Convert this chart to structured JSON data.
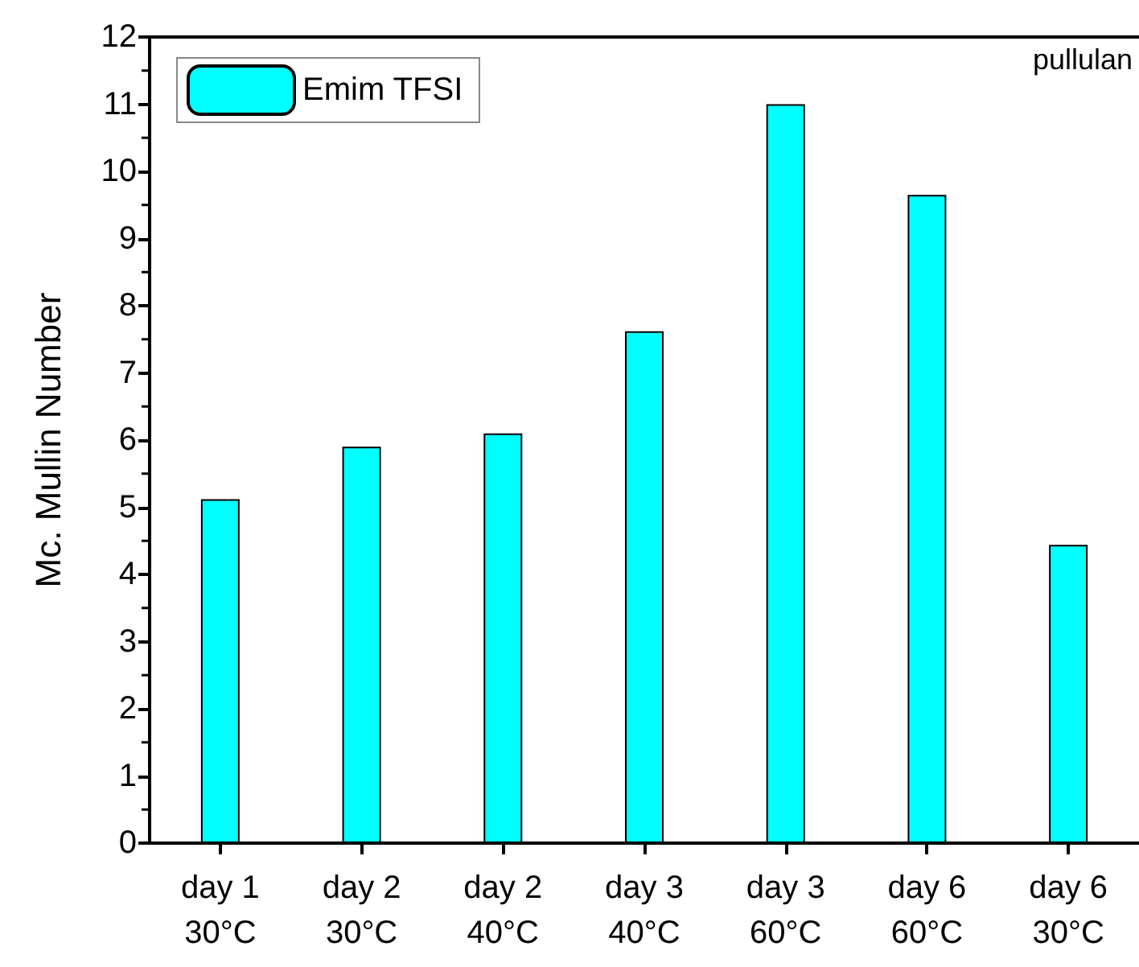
{
  "chart_data": {
    "type": "bar",
    "ylabel": "Mc. Mullin Number",
    "annotations": [
      "pullulan"
    ],
    "categories": [
      "day 1\n30°C",
      "day 2\n30°C",
      "day 2\n40°C",
      "day 3\n40°C",
      "day 3\n60°C",
      "day 6\n60°C",
      "day 6\n30°C"
    ],
    "series": [
      {
        "name": "Emim TFSI",
        "color": "#00ffff",
        "values": [
          5.12,
          5.9,
          6.1,
          7.62,
          11.0,
          9.65,
          4.44
        ]
      }
    ],
    "ylim": [
      0,
      12
    ],
    "yticks": [
      0,
      1,
      2,
      3,
      4,
      5,
      6,
      7,
      8,
      9,
      10,
      11,
      12
    ],
    "grid": false,
    "legend": "top left"
  }
}
